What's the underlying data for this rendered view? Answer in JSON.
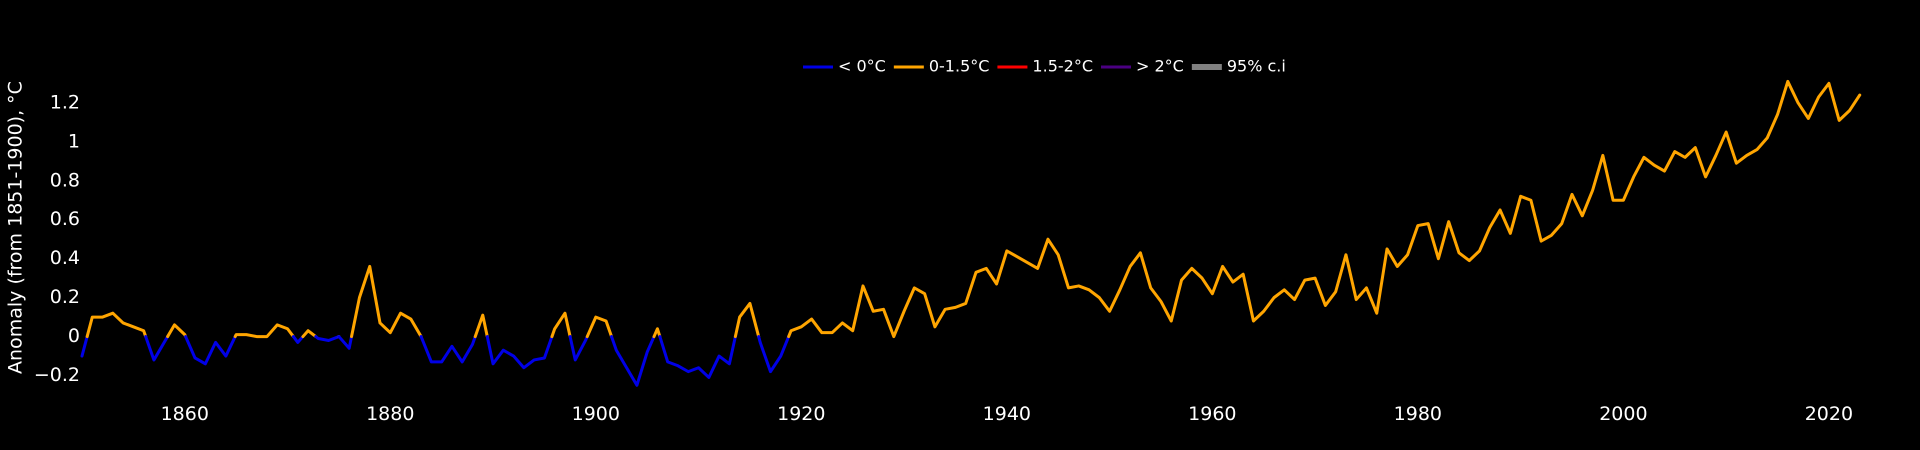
{
  "chart_data": {
    "type": "line",
    "title": "",
    "xlabel": "",
    "ylabel": "Anomaly (from 1851-1900), °C",
    "xlim": [
      1850,
      2024
    ],
    "ylim": [
      -0.3,
      1.42
    ],
    "grid": false,
    "legend_position": "top-center",
    "x_ticks": [
      1860,
      1880,
      1900,
      1920,
      1940,
      1960,
      1980,
      2000,
      2020
    ],
    "y_ticks": [
      -0.2,
      0,
      0.2,
      0.4,
      0.6,
      0.8,
      1,
      1.2
    ],
    "y_tick_labels": [
      "−0.2",
      "0",
      "0.2",
      "0.4",
      "0.6",
      "0.8",
      "1",
      "1.2"
    ],
    "colors": {
      "background": "#000000",
      "text": "#ffffff",
      "below_zero": "#0000e6",
      "zero_to_1_5": "#ffa500",
      "one_5_to_2": "#ff0000",
      "above_2": "#4b0082",
      "ci": "#808080"
    },
    "legend": [
      {
        "label": "< 0°C",
        "color_key": "below_zero"
      },
      {
        "label": "0-1.5°C",
        "color_key": "zero_to_1_5"
      },
      {
        "label": "1.5-2°C",
        "color_key": "one_5_to_2"
      },
      {
        "label": "> 2°C",
        "color_key": "above_2"
      },
      {
        "label": "95% c.i",
        "color_key": "ci"
      }
    ],
    "x": [
      1850,
      1851,
      1852,
      1853,
      1854,
      1855,
      1856,
      1857,
      1858,
      1859,
      1860,
      1861,
      1862,
      1863,
      1864,
      1865,
      1866,
      1867,
      1868,
      1869,
      1870,
      1871,
      1872,
      1873,
      1874,
      1875,
      1876,
      1877,
      1878,
      1879,
      1880,
      1881,
      1882,
      1883,
      1884,
      1885,
      1886,
      1887,
      1888,
      1889,
      1890,
      1891,
      1892,
      1893,
      1894,
      1895,
      1896,
      1897,
      1898,
      1899,
      1900,
      1901,
      1902,
      1903,
      1904,
      1905,
      1906,
      1907,
      1908,
      1909,
      1910,
      1911,
      1912,
      1913,
      1914,
      1915,
      1916,
      1917,
      1918,
      1919,
      1920,
      1921,
      1922,
      1923,
      1924,
      1925,
      1926,
      1927,
      1928,
      1929,
      1930,
      1931,
      1932,
      1933,
      1934,
      1935,
      1936,
      1937,
      1938,
      1939,
      1940,
      1941,
      1942,
      1943,
      1944,
      1945,
      1946,
      1947,
      1948,
      1949,
      1950,
      1951,
      1952,
      1953,
      1954,
      1955,
      1956,
      1957,
      1958,
      1959,
      1960,
      1961,
      1962,
      1963,
      1964,
      1965,
      1966,
      1967,
      1968,
      1969,
      1970,
      1971,
      1972,
      1973,
      1974,
      1975,
      1976,
      1977,
      1978,
      1979,
      1980,
      1981,
      1982,
      1983,
      1984,
      1985,
      1986,
      1987,
      1988,
      1989,
      1990,
      1991,
      1992,
      1993,
      1994,
      1995,
      1996,
      1997,
      1998,
      1999,
      2000,
      2001,
      2002,
      2003,
      2004,
      2005,
      2006,
      2007,
      2008,
      2009,
      2010,
      2011,
      2012,
      2013,
      2014,
      2015,
      2016,
      2017,
      2018,
      2019,
      2020,
      2021,
      2022,
      2023
    ],
    "y": [
      -0.1,
      0.1,
      0.1,
      0.12,
      0.07,
      0.05,
      0.03,
      -0.12,
      -0.03,
      0.06,
      0.01,
      -0.11,
      -0.14,
      -0.03,
      -0.1,
      0.01,
      0.01,
      0.0,
      0.0,
      0.06,
      0.04,
      -0.03,
      0.03,
      -0.01,
      -0.02,
      0.0,
      -0.06,
      0.2,
      0.36,
      0.07,
      0.02,
      0.12,
      0.09,
      0.0,
      -0.13,
      -0.13,
      -0.05,
      -0.13,
      -0.04,
      0.11,
      -0.14,
      -0.07,
      -0.1,
      -0.16,
      -0.12,
      -0.11,
      0.04,
      0.12,
      -0.12,
      -0.02,
      0.1,
      0.08,
      -0.07,
      -0.16,
      -0.25,
      -0.08,
      0.04,
      -0.13,
      -0.15,
      -0.18,
      -0.16,
      -0.21,
      -0.1,
      -0.14,
      0.1,
      0.17,
      -0.03,
      -0.18,
      -0.1,
      0.03,
      0.05,
      0.09,
      0.02,
      0.02,
      0.07,
      0.03,
      0.26,
      0.13,
      0.14,
      0.0,
      0.13,
      0.25,
      0.22,
      0.05,
      0.14,
      0.15,
      0.17,
      0.33,
      0.35,
      0.27,
      0.44,
      0.41,
      0.38,
      0.35,
      0.5,
      0.42,
      0.25,
      0.26,
      0.24,
      0.2,
      0.13,
      0.24,
      0.36,
      0.43,
      0.25,
      0.18,
      0.08,
      0.29,
      0.35,
      0.3,
      0.22,
      0.36,
      0.28,
      0.32,
      0.08,
      0.13,
      0.2,
      0.24,
      0.19,
      0.29,
      0.3,
      0.16,
      0.23,
      0.42,
      0.19,
      0.25,
      0.12,
      0.45,
      0.36,
      0.42,
      0.57,
      0.58,
      0.4,
      0.59,
      0.43,
      0.39,
      0.44,
      0.56,
      0.65,
      0.53,
      0.72,
      0.7,
      0.49,
      0.52,
      0.58,
      0.73,
      0.62,
      0.75,
      0.93,
      0.7,
      0.7,
      0.82,
      0.92,
      0.88,
      0.85,
      0.95,
      0.92,
      0.97,
      0.82,
      0.93,
      1.05,
      0.89,
      0.93,
      0.96,
      1.02,
      1.14,
      1.31,
      1.2,
      1.12,
      1.23,
      1.3,
      1.11,
      1.16,
      1.24
    ]
  }
}
